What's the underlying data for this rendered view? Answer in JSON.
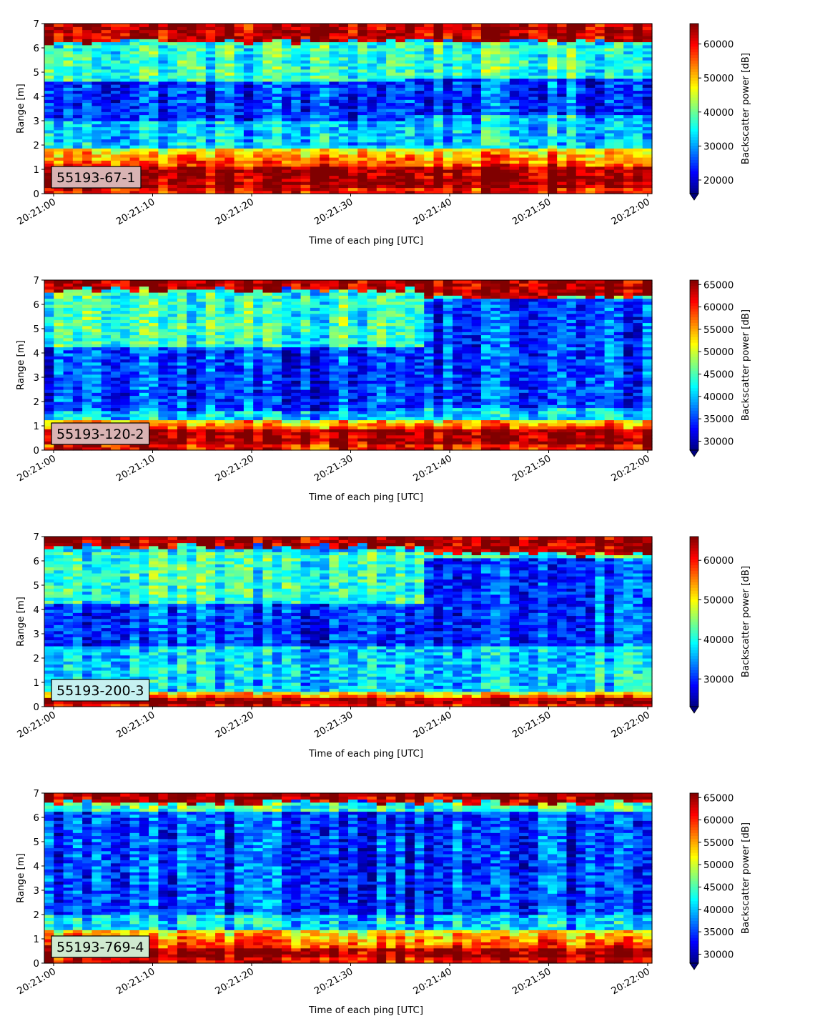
{
  "chart_data": [
    {
      "type": "heatmap",
      "panel_label": "55193-67-1",
      "label_box_color": "#d9b3b3",
      "xlabel": "Time of each ping [UTC]",
      "ylabel": "Range [m]",
      "colorbar_label": "Backscatter power [dB]",
      "x_ticks": [
        "20:21:00",
        "20:21:10",
        "20:21:20",
        "20:21:30",
        "20:21:40",
        "20:21:50",
        "20:22:00"
      ],
      "y_ticks": [
        0,
        1,
        2,
        3,
        4,
        5,
        6,
        7
      ],
      "ylim": [
        0,
        7
      ],
      "color_range": [
        16000,
        66000
      ],
      "colorbar_ticks": [
        20000,
        30000,
        40000,
        50000,
        60000
      ],
      "colorbar_extend": "min",
      "profile": {
        "bottom_echo": [
          0.2,
          1.15
        ],
        "near_bright": [
          1.15,
          1.9
        ],
        "upper_bright_band": [
          4.6,
          6.2
        ],
        "dark_core": [
          3.0,
          4.6
        ],
        "surface_echo": [
          6.3,
          7.0
        ]
      },
      "features": [
        {
          "x_start": 0.6,
          "x_end": 1.0,
          "dark_core": [
            3.2,
            4.8
          ],
          "upper_boundary": 6.3
        }
      ]
    },
    {
      "type": "heatmap",
      "panel_label": "55193-120-2",
      "label_box_color": "#d9b3b3",
      "xlabel": "Time of each ping [UTC]",
      "ylabel": "Range [m]",
      "colorbar_label": "Backscatter power [dB]",
      "x_ticks": [
        "20:21:00",
        "20:21:10",
        "20:21:20",
        "20:21:30",
        "20:21:40",
        "20:21:50",
        "20:22:00"
      ],
      "y_ticks": [
        0,
        1,
        2,
        3,
        4,
        5,
        6,
        7
      ],
      "ylim": [
        0,
        7
      ],
      "color_range": [
        28000,
        66000
      ],
      "colorbar_ticks": [
        30000,
        35000,
        40000,
        45000,
        50000,
        55000,
        60000,
        65000
      ],
      "colorbar_extend": "min",
      "profile": {
        "bottom_echo": [
          0.2,
          0.85
        ],
        "near_bright": [
          0.85,
          1.3
        ],
        "upper_bright_band": [
          4.3,
          6.5
        ],
        "dark_core": [
          1.6,
          4.3
        ],
        "surface_echo": [
          6.6,
          7.0
        ]
      },
      "features": [
        {
          "x_start": 0.0,
          "x_end": 0.62,
          "bright_band": [
            4.3,
            6.6
          ]
        },
        {
          "x_start": 0.62,
          "x_end": 1.0,
          "dark_core": [
            1.8,
            6.2
          ],
          "upper_boundary": 6.3
        }
      ]
    },
    {
      "type": "heatmap",
      "panel_label": "55193-200-3",
      "label_box_color": "#c6f1f1",
      "xlabel": "Time of each ping [UTC]",
      "ylabel": "Range [m]",
      "colorbar_label": "Backscatter power [dB]",
      "x_ticks": [
        "20:21:00",
        "20:21:10",
        "20:21:20",
        "20:21:30",
        "20:21:40",
        "20:21:50",
        "20:22:00"
      ],
      "y_ticks": [
        0,
        1,
        2,
        3,
        4,
        5,
        6,
        7
      ],
      "ylim": [
        0,
        7
      ],
      "color_range": [
        23000,
        66000
      ],
      "colorbar_ticks": [
        30000,
        40000,
        50000,
        60000
      ],
      "colorbar_extend": "min",
      "profile": {
        "bottom_echo": [
          0.1,
          0.35
        ],
        "near_bright": [
          0.35,
          0.6
        ],
        "upper_bright_band": [
          4.2,
          6.4
        ],
        "dark_core": [
          2.5,
          4.2
        ],
        "surface_echo": [
          6.6,
          7.0
        ]
      },
      "features": [
        {
          "x_start": 0.62,
          "x_end": 1.0,
          "dark_core": [
            2.5,
            6.1
          ],
          "upper_boundary": 6.3
        }
      ]
    },
    {
      "type": "heatmap",
      "panel_label": "55193-769-4",
      "label_box_color": "#cfe9cf",
      "xlabel": "Time of each ping [UTC]",
      "ylabel": "Range [m]",
      "colorbar_label": "Backscatter power [dB]",
      "x_ticks": [
        "20:21:00",
        "20:21:10",
        "20:21:20",
        "20:21:30",
        "20:21:40",
        "20:21:50",
        "20:22:00"
      ],
      "y_ticks": [
        0,
        1,
        2,
        3,
        4,
        5,
        6,
        7
      ],
      "ylim": [
        0,
        7
      ],
      "color_range": [
        28000,
        66000
      ],
      "colorbar_ticks": [
        30000,
        35000,
        40000,
        45000,
        50000,
        55000,
        60000,
        65000
      ],
      "colorbar_extend": "min",
      "profile": {
        "bottom_echo": [
          0.25,
          0.65
        ],
        "near_bright": [
          0.65,
          1.4
        ],
        "upper_bright_band": [
          6.3,
          6.6
        ],
        "dark_core": [
          2.0,
          6.3
        ],
        "surface_echo": [
          6.6,
          7.0
        ]
      },
      "features": []
    }
  ]
}
